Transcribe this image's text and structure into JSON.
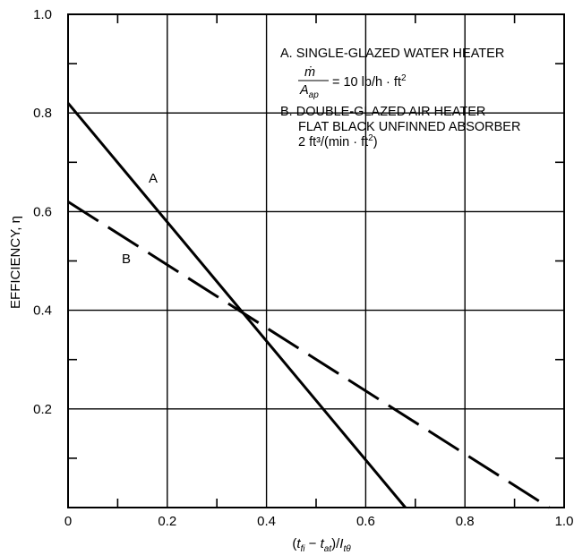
{
  "chart_data": {
    "type": "line",
    "title": "",
    "xlabel": {
      "open": "(",
      "t1": "t",
      "s1": "fi",
      "minus": " − ",
      "t2": "t",
      "s2": "at",
      "div": ")/",
      "I": "I",
      "s3": "tθ"
    },
    "ylabel": "EFFICIENCY, η",
    "xlim": [
      0,
      1.0
    ],
    "ylim": [
      0,
      1.0
    ],
    "x_ticks": [
      "0",
      "0.2",
      "0.4",
      "0.6",
      "0.8",
      "1.0"
    ],
    "y_ticks": [
      "0.2",
      "0.4",
      "0.6",
      "0.8",
      "1.0"
    ],
    "grid": true,
    "series": [
      {
        "name": "A",
        "style": "solid",
        "x": [
          0,
          0.68
        ],
        "y": [
          0.82,
          0
        ]
      },
      {
        "name": "B",
        "style": "dashed",
        "x": [
          0,
          0.97
        ],
        "y": [
          0.62,
          0
        ]
      }
    ],
    "legend": {
      "placement": "top-right",
      "a": {
        "label": "A. SINGLE-GLAZED WATER HEATER",
        "num": "ṁ",
        "den": "A",
        "den_sub": "ap",
        "eq": "= 10 lb/h · ft",
        "eq_sup": "2"
      },
      "b": {
        "line1": "B. DOUBLE-GLAZED AIR HEATER",
        "line2": "FLAT BLACK UNFINNED ABSORBER",
        "line3": "2 ft³/(min · ft",
        "line3_sup": "2",
        "line3_end": ")"
      }
    }
  }
}
